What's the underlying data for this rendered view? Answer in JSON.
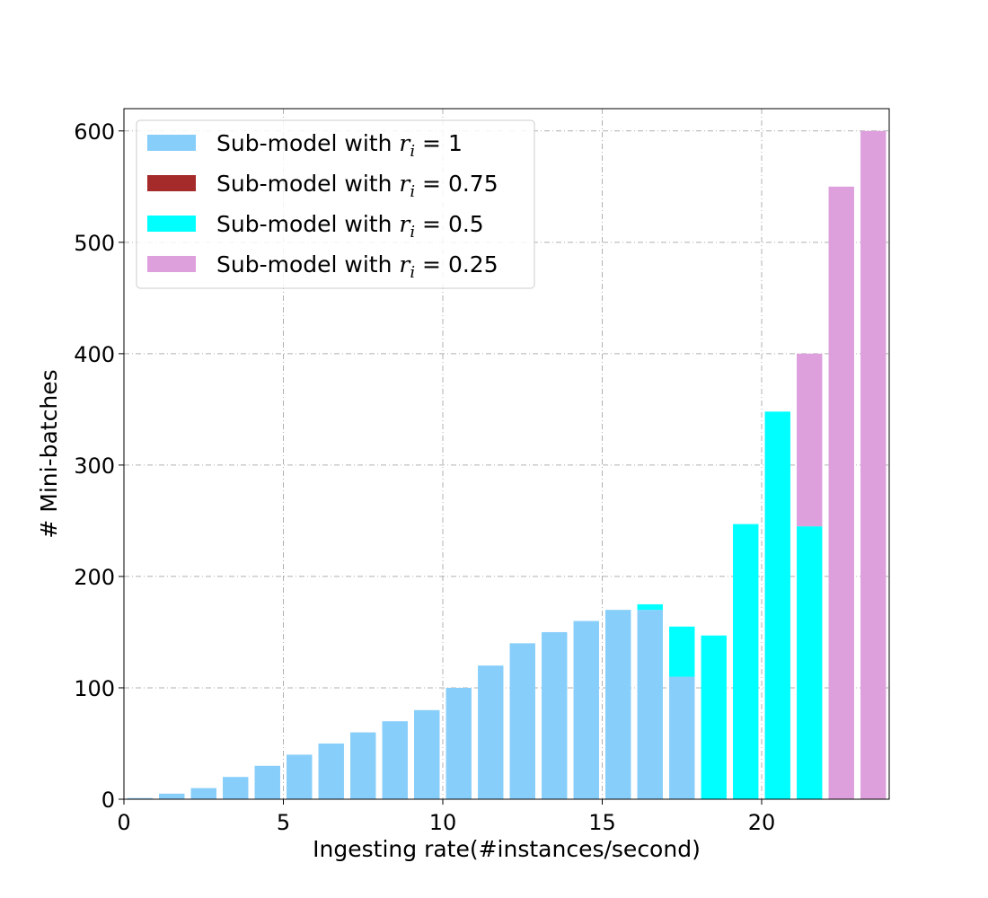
{
  "chart_data": {
    "type": "bar",
    "stacked": true,
    "title": "",
    "xlabel": "Ingesting rate(#instances/second)",
    "ylabel": "# Mini-batches",
    "xlim": [
      0,
      24
    ],
    "ylim": [
      0,
      620
    ],
    "xticks": [
      0,
      5,
      10,
      15,
      20
    ],
    "yticks": [
      0,
      100,
      200,
      300,
      400,
      500,
      600
    ],
    "grid": true,
    "grid_style": "dashdot",
    "legend_position": "upper-left",
    "x": [
      0,
      1,
      2,
      3,
      4,
      5,
      6,
      7,
      8,
      9,
      10,
      11,
      12,
      13,
      14,
      15,
      16,
      17,
      18,
      19,
      20,
      21,
      22,
      23
    ],
    "series": [
      {
        "name_prefix": "Sub-model with ",
        "name_symbol": "r",
        "name_subscript": "i",
        "name_suffix": " = 1",
        "color": "#87CEFA",
        "values": [
          1,
          5,
          10,
          20,
          30,
          40,
          50,
          60,
          70,
          80,
          100,
          120,
          140,
          150,
          160,
          170,
          170,
          110,
          0,
          0,
          0,
          0,
          0,
          0
        ]
      },
      {
        "name_prefix": "Sub-model with ",
        "name_symbol": "r",
        "name_subscript": "i",
        "name_suffix": " = 0.75",
        "color": "#A52A2A",
        "values": [
          0,
          0,
          0,
          0,
          0,
          0,
          0,
          0,
          0,
          0,
          0,
          0,
          0,
          0,
          0,
          0,
          0,
          0,
          0,
          0,
          0,
          0,
          0,
          0
        ]
      },
      {
        "name_prefix": "Sub-model with ",
        "name_symbol": "r",
        "name_subscript": "i",
        "name_suffix": " = 0.5",
        "color": "#00FFFF",
        "values": [
          0,
          0,
          0,
          0,
          0,
          0,
          0,
          0,
          0,
          0,
          0,
          0,
          0,
          0,
          0,
          0,
          5,
          45,
          147,
          247,
          348,
          245,
          0,
          0
        ]
      },
      {
        "name_prefix": "Sub-model with ",
        "name_symbol": "r",
        "name_subscript": "i",
        "name_suffix": " = 0.25",
        "color": "#DDA0DD",
        "values": [
          0,
          0,
          0,
          0,
          0,
          0,
          0,
          0,
          0,
          0,
          0,
          0,
          0,
          0,
          0,
          0,
          0,
          0,
          0,
          0,
          0,
          155,
          550,
          600
        ]
      }
    ]
  }
}
